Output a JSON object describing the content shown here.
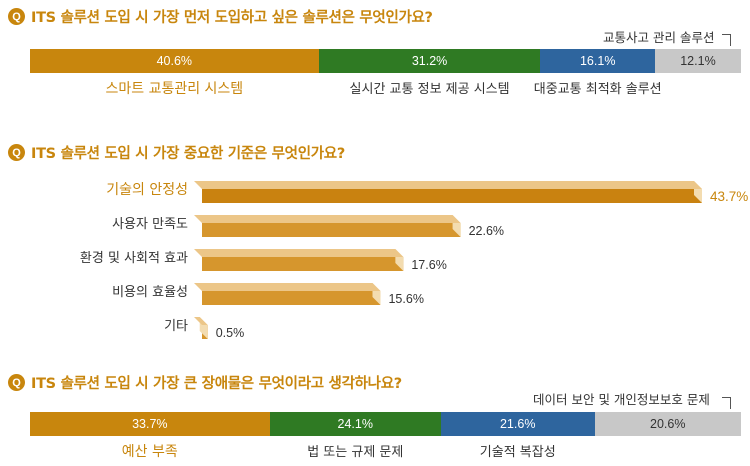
{
  "q1": {
    "badge": "Q",
    "question": "ITS 솔루션 도입 시 가장 먼저 도입하고 싶은 솔루션은 무엇인가요?",
    "callout": "교통사고 관리 솔루션"
  },
  "q2": {
    "badge": "Q",
    "question": "ITS 솔루션 도입 시 가장 중요한 기준은 무엇인가요?"
  },
  "q3": {
    "badge": "Q",
    "question": "ITS 솔루션 도입 시 가장 큰 장애물은 무엇이라고 생각하나요?",
    "callout": "데이터 보안 및 개인정보보호 문제"
  },
  "colors": {
    "accent": "#c8860d",
    "orange": "#c8860d",
    "green": "#2f7a23",
    "blue": "#2e659e",
    "gray": "#c8c8c8",
    "hbar": "#d6962d",
    "hbar_top": "#c98210"
  },
  "chart_data": [
    {
      "type": "bar",
      "stacked": true,
      "orientation": "horizontal",
      "title": "ITS 솔루션 도입 시 가장 먼저 도입하고 싶은 솔루션은 무엇인가요?",
      "categories": [
        "스마트 교통관리 시스템",
        "실시간 교통 정보 제공 시스템",
        "대중교통 최적화 솔루션",
        "교통사고 관리 솔루션"
      ],
      "values": [
        40.6,
        31.2,
        16.1,
        12.1
      ],
      "labels": [
        "40.6%",
        "31.2%",
        "16.1%",
        "12.1%"
      ]
    },
    {
      "type": "bar",
      "orientation": "horizontal",
      "title": "ITS 솔루션 도입 시 가장 중요한 기준은 무엇인가요?",
      "categories": [
        "기술의 안정성",
        "사용자 만족도",
        "환경 및 사회적 효과",
        "비용의 효율성",
        "기타"
      ],
      "values": [
        43.7,
        22.6,
        17.6,
        15.6,
        0.5
      ],
      "labels": [
        "43.7%",
        "22.6%",
        "17.6%",
        "15.6%",
        "0.5%"
      ]
    },
    {
      "type": "bar",
      "stacked": true,
      "orientation": "horizontal",
      "title": "ITS 솔루션 도입 시 가장 큰 장애물은 무엇이라고 생각하나요?",
      "categories": [
        "예산 부족",
        "법 또는 규제 문제",
        "기술적 복잡성",
        "데이터 보안 및 개인정보보호 문제"
      ],
      "values": [
        33.7,
        24.1,
        21.6,
        20.6
      ],
      "labels": [
        "33.7%",
        "24.1%",
        "21.6%",
        "20.6%"
      ]
    }
  ]
}
